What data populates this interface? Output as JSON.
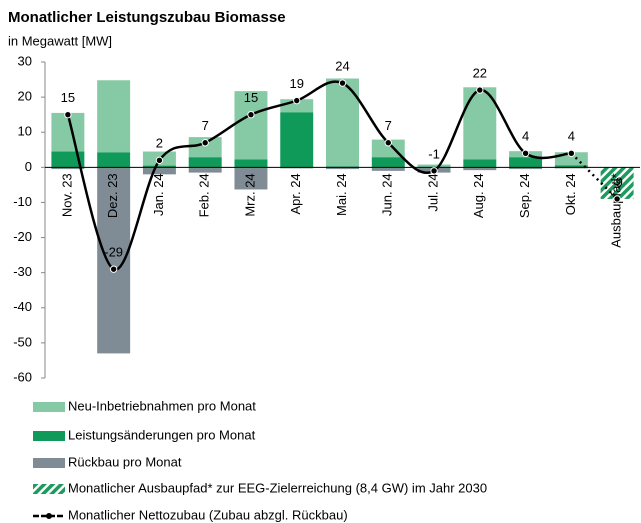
{
  "chart_data": {
    "type": "bar",
    "title": "Monatlicher Leistungszubau Biomasse",
    "subtitle": "in Megawatt [MW]",
    "categories": [
      "Nov. 23",
      "Dez. 23",
      "Jan. 24",
      "Feb. 24",
      "Mrz. 24",
      "Apr. 24",
      "Mai. 24",
      "Jun. 24",
      "Jul. 24",
      "Aug. 24",
      "Sep. 24",
      "Okt. 24",
      "Ausbaupfad*"
    ],
    "ylim": [
      -60,
      30
    ],
    "yticks": [
      -60,
      -50,
      -40,
      -30,
      -20,
      -10,
      0,
      10,
      20,
      30
    ],
    "series": [
      {
        "name": "Neu-Inbetriebnahmen pro Monat",
        "color": "#86c9a5",
        "stack_order": 2,
        "values": [
          11,
          20.5,
          4,
          5.7,
          19.4,
          3.7,
          25,
          5,
          0.6,
          20.5,
          1.7,
          3.7,
          null
        ]
      },
      {
        "name": "Leistungsänderungen pro Monat",
        "color": "#109a5a",
        "stack_order": 1,
        "values": [
          4.5,
          4.3,
          0.5,
          2.9,
          2.3,
          15.7,
          0.3,
          2.9,
          0.2,
          2.3,
          2.9,
          0.6,
          null
        ]
      },
      {
        "name": "Rückbau pro Monat",
        "color": "#7f8c96",
        "stack_order": 3,
        "values": [
          -0.5,
          -53,
          -2,
          -1.5,
          -6.3,
          -0.3,
          -0.5,
          -1,
          -1.5,
          -0.8,
          -0.5,
          -0.3,
          null
        ]
      },
      {
        "name": "Monatlicher Ausbaupfad* zur EEG-Zielerreichung (8,4 GW) im Jahr 2030",
        "color": "#1d9a5e",
        "hatched": true,
        "stack_order": 4,
        "values": [
          null,
          null,
          null,
          null,
          null,
          null,
          null,
          null,
          null,
          null,
          null,
          null,
          -9
        ]
      },
      {
        "name": "Monatlicher Nettozubau (Zubau abzgl. Rückbau)",
        "color": "#000000",
        "type": "line",
        "values": [
          15,
          -29,
          2,
          7,
          15,
          19,
          24,
          7,
          -1,
          22,
          4,
          4,
          -9
        ]
      }
    ]
  }
}
